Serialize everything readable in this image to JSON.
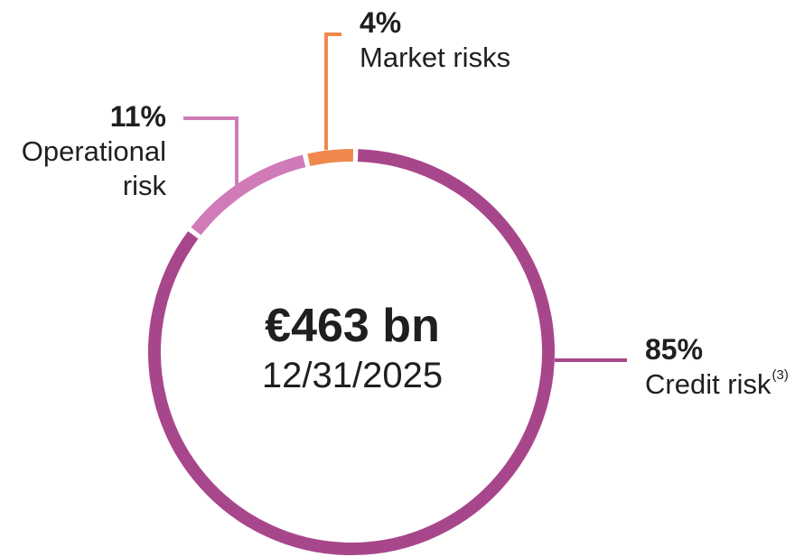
{
  "chart_data": {
    "type": "pie",
    "donut": true,
    "center_label": "€463 bn",
    "center_sublabel": "12/31/2025",
    "slices": [
      {
        "label": "Credit risk",
        "footnote": "(3)",
        "value": 85,
        "value_label": "85%",
        "color": "#a8468c"
      },
      {
        "label": "Operational risk",
        "value": 11,
        "value_label": "11%",
        "color": "#d07ab8"
      },
      {
        "label": "Market risks",
        "value": 4,
        "value_label": "4%",
        "color": "#f0884e"
      }
    ]
  }
}
